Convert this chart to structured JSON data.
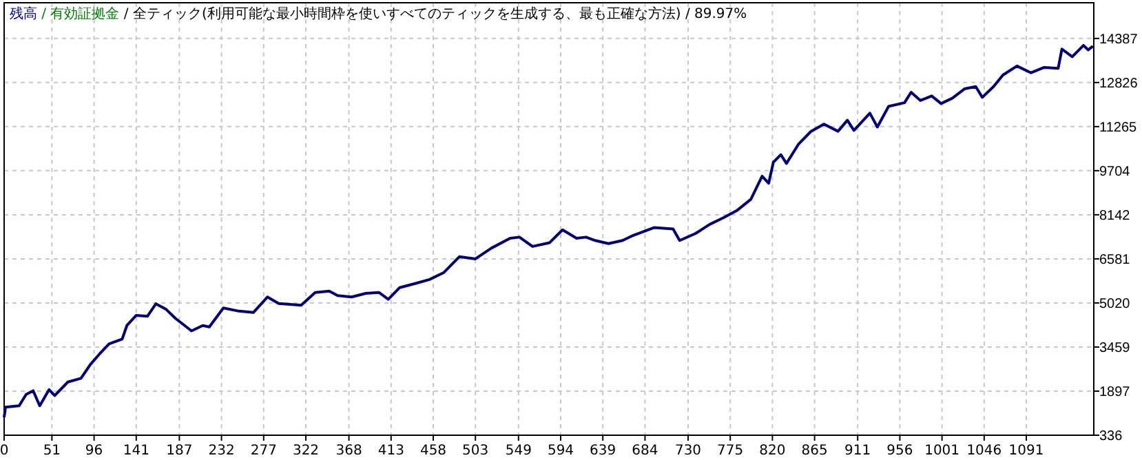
{
  "chart_data": {
    "type": "line",
    "title": "残高 / 有効証拠金 / 全ティック(利用可能な最小時間枠を使いすべてのティックを生成する、最も正確な方法) / 89.97%",
    "xlim": [
      0,
      1163
    ],
    "xticks": [
      0,
      51,
      96,
      141,
      187,
      232,
      277,
      322,
      368,
      413,
      458,
      503,
      549,
      594,
      639,
      684,
      730,
      775,
      820,
      865,
      911,
      956,
      1001,
      1046,
      1091
    ],
    "ylim": [
      336,
      15650
    ],
    "yticks": [
      336,
      1897,
      3459,
      5020,
      6581,
      8142,
      9704,
      11265,
      12826,
      14387
    ],
    "grid": true,
    "series": [
      {
        "color": "#000080",
        "x": [
          0,
          1.5,
          16,
          23.5,
          31,
          38,
          48,
          54,
          68,
          82,
          92,
          102,
          112,
          126,
          131,
          141,
          153,
          162,
          173,
          183,
          200,
          212,
          219,
          234,
          249,
          266,
          281,
          293,
          317,
          332,
          347,
          356,
          371,
          386,
          400,
          410,
          422,
          440,
          454,
          469,
          486,
          503,
          520,
          540,
          550,
          564,
          582,
          596,
          611,
          621,
          631,
          645,
          660,
          670,
          694,
          714,
          721,
          738,
          753,
          768,
          782,
          797,
          809,
          816,
          821,
          829,
          835,
          848,
          861,
          875,
          890,
          900,
          907,
          924,
          932,
          944,
          961,
          968,
          978,
          990,
          1000,
          1012,
          1025,
          1037,
          1044,
          1056,
          1066,
          1081,
          1096,
          1110,
          1125,
          1129,
          1140,
          1152,
          1157,
          1162
        ],
        "values": [
          970,
          1330,
          1380,
          1780,
          1910,
          1380,
          1950,
          1740,
          2220,
          2350,
          2840,
          3220,
          3570,
          3740,
          4220,
          4580,
          4550,
          4990,
          4790,
          4470,
          4030,
          4220,
          4170,
          4840,
          4740,
          4680,
          5230,
          5000,
          4940,
          5390,
          5440,
          5280,
          5230,
          5360,
          5390,
          5150,
          5560,
          5720,
          5850,
          6090,
          6660,
          6580,
          6960,
          7310,
          7350,
          7020,
          7150,
          7610,
          7310,
          7350,
          7230,
          7120,
          7230,
          7390,
          7690,
          7640,
          7230,
          7480,
          7800,
          8040,
          8290,
          8690,
          9510,
          9260,
          10000,
          10270,
          9960,
          10650,
          11090,
          11350,
          11100,
          11490,
          11130,
          11740,
          11250,
          11980,
          12110,
          12480,
          12190,
          12350,
          12080,
          12270,
          12600,
          12680,
          12300,
          12680,
          13090,
          13410,
          13170,
          13360,
          13330,
          14010,
          13740,
          14140,
          13980,
          14110
        ]
      }
    ]
  }
}
